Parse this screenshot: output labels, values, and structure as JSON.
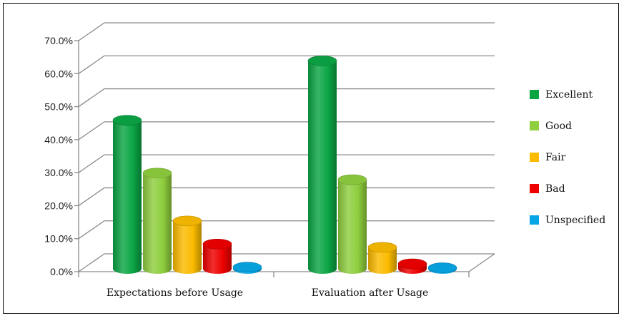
{
  "chart_data": {
    "type": "bar",
    "style": "3d-cylinder",
    "categories": [
      "Expectations before Usage",
      "Evaluation after Usage"
    ],
    "series": [
      {
        "name": "Excellent",
        "color": "#0ba544",
        "values": [
          45.0,
          63.0
        ]
      },
      {
        "name": "Good",
        "color": "#8fce3e",
        "values": [
          29.0,
          27.0
        ]
      },
      {
        "name": "Fair",
        "color": "#fbbb00",
        "values": [
          14.5,
          6.5
        ]
      },
      {
        "name": "Bad",
        "color": "#ee0000",
        "values": [
          7.5,
          1.5
        ]
      },
      {
        "name": "Unspecified",
        "color": "#06a6e6",
        "values": [
          0.5,
          0.3
        ]
      }
    ],
    "y_ticks": [
      "0.0%",
      "10.0%",
      "20.0%",
      "30.0%",
      "40.0%",
      "50.0%",
      "60.0%",
      "70.0%"
    ],
    "ylim": [
      0,
      70
    ],
    "grid": true,
    "legend_position": "right"
  }
}
